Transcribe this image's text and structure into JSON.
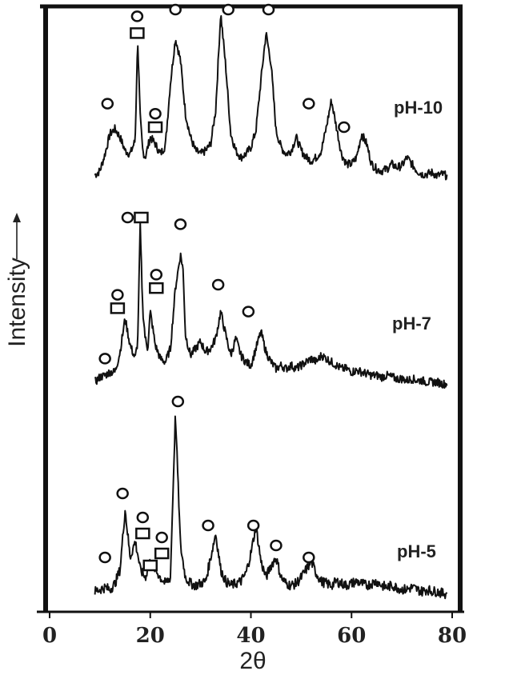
{
  "chart_data": {
    "type": "line",
    "title": "",
    "xlabel": "2θ",
    "ylabel": "Intensity",
    "xlim": [
      0,
      80
    ],
    "x_ticks": [
      "0",
      "20",
      "40",
      "60",
      "80"
    ],
    "legend": "none",
    "grid": false,
    "marker_legend": {
      "circle": "O",
      "square": "□"
    },
    "series": [
      {
        "name": "pH-10",
        "points": [
          [
            9,
            1.5
          ],
          [
            10,
            4
          ],
          [
            11,
            14
          ],
          [
            12,
            26
          ],
          [
            13,
            29
          ],
          [
            14,
            24
          ],
          [
            15,
            16
          ],
          [
            16,
            14
          ],
          [
            17,
            22
          ],
          [
            17.5,
            82
          ],
          [
            18,
            36
          ],
          [
            18.5,
            16
          ],
          [
            19,
            12
          ],
          [
            20,
            24
          ],
          [
            21,
            20
          ],
          [
            22,
            14
          ],
          [
            23,
            19
          ],
          [
            24,
            56
          ],
          [
            25,
            83
          ],
          [
            26,
            70
          ],
          [
            27,
            38
          ],
          [
            28,
            24
          ],
          [
            29,
            16
          ],
          [
            30,
            14
          ],
          [
            31,
            16
          ],
          [
            32,
            20
          ],
          [
            33,
            40
          ],
          [
            34,
            98
          ],
          [
            35,
            66
          ],
          [
            36,
            26
          ],
          [
            37,
            16
          ],
          [
            38,
            12
          ],
          [
            39,
            14
          ],
          [
            40,
            18
          ],
          [
            41,
            28
          ],
          [
            42,
            58
          ],
          [
            43,
            86
          ],
          [
            44,
            68
          ],
          [
            45,
            28
          ],
          [
            46,
            18
          ],
          [
            47,
            14
          ],
          [
            48,
            16
          ],
          [
            49,
            24
          ],
          [
            50,
            16
          ],
          [
            51,
            12
          ],
          [
            52,
            10
          ],
          [
            53,
            12
          ],
          [
            54,
            16
          ],
          [
            55,
            30
          ],
          [
            56,
            46
          ],
          [
            57,
            30
          ],
          [
            58,
            14
          ],
          [
            59,
            8
          ],
          [
            60,
            8
          ],
          [
            61,
            12
          ],
          [
            62,
            26
          ],
          [
            63,
            20
          ],
          [
            64,
            8
          ],
          [
            65,
            5
          ],
          [
            66,
            4
          ],
          [
            67,
            5
          ],
          [
            68,
            8
          ],
          [
            69,
            6
          ],
          [
            70,
            7
          ],
          [
            71,
            12
          ],
          [
            72,
            8
          ],
          [
            73,
            4
          ],
          [
            74,
            2
          ],
          [
            75,
            2
          ],
          [
            76,
            3
          ],
          [
            77,
            1
          ],
          [
            78,
            2
          ],
          [
            79,
            1
          ]
        ]
      },
      {
        "name": "pH-7",
        "points": [
          [
            9,
            2
          ],
          [
            10,
            5
          ],
          [
            11,
            6
          ],
          [
            12,
            8
          ],
          [
            13,
            8
          ],
          [
            14,
            20
          ],
          [
            15,
            40
          ],
          [
            16,
            24
          ],
          [
            17,
            16
          ],
          [
            17.5,
            26
          ],
          [
            18,
            95
          ],
          [
            18.5,
            46
          ],
          [
            19,
            28
          ],
          [
            19.5,
            22
          ],
          [
            20,
            44
          ],
          [
            21,
            24
          ],
          [
            22,
            16
          ],
          [
            23,
            14
          ],
          [
            24,
            22
          ],
          [
            25,
            58
          ],
          [
            26,
            78
          ],
          [
            26.5,
            70
          ],
          [
            27,
            30
          ],
          [
            28,
            18
          ],
          [
            29,
            22
          ],
          [
            30,
            26
          ],
          [
            31,
            20
          ],
          [
            32,
            22
          ],
          [
            33,
            28
          ],
          [
            34,
            44
          ],
          [
            35,
            30
          ],
          [
            36,
            18
          ],
          [
            37,
            28
          ],
          [
            38,
            18
          ],
          [
            39,
            14
          ],
          [
            40,
            12
          ],
          [
            41,
            22
          ],
          [
            42,
            32
          ],
          [
            43,
            20
          ],
          [
            44,
            14
          ],
          [
            45,
            10
          ],
          [
            46,
            12
          ],
          [
            47,
            10
          ],
          [
            48,
            12
          ],
          [
            49,
            10
          ],
          [
            50,
            12
          ],
          [
            51,
            14
          ],
          [
            52,
            16
          ],
          [
            53,
            14
          ],
          [
            54,
            18
          ],
          [
            55,
            16
          ],
          [
            56,
            14
          ],
          [
            57,
            12
          ],
          [
            58,
            10
          ],
          [
            59,
            10
          ],
          [
            60,
            8
          ],
          [
            61,
            9
          ],
          [
            62,
            8
          ],
          [
            63,
            7
          ],
          [
            64,
            6
          ],
          [
            65,
            6
          ],
          [
            66,
            5
          ],
          [
            67,
            6
          ],
          [
            68,
            5
          ],
          [
            69,
            4
          ],
          [
            70,
            4
          ],
          [
            71,
            3
          ],
          [
            72,
            4
          ],
          [
            73,
            3
          ],
          [
            74,
            3
          ],
          [
            75,
            2
          ],
          [
            76,
            2
          ],
          [
            77,
            2
          ],
          [
            78,
            1
          ],
          [
            79,
            1
          ]
        ]
      },
      {
        "name": "pH-5",
        "points": [
          [
            9,
            1
          ],
          [
            10,
            2
          ],
          [
            11,
            3
          ],
          [
            12,
            2
          ],
          [
            13,
            5
          ],
          [
            14,
            12
          ],
          [
            15,
            42
          ],
          [
            16,
            18
          ],
          [
            17,
            26
          ],
          [
            17.5,
            20
          ],
          [
            18,
            12
          ],
          [
            19,
            8
          ],
          [
            20,
            16
          ],
          [
            21,
            12
          ],
          [
            22,
            8
          ],
          [
            23,
            5
          ],
          [
            24,
            8
          ],
          [
            25,
            90
          ],
          [
            26,
            24
          ],
          [
            27,
            8
          ],
          [
            28,
            5
          ],
          [
            29,
            4
          ],
          [
            30,
            5
          ],
          [
            31,
            6
          ],
          [
            32,
            18
          ],
          [
            33,
            30
          ],
          [
            34,
            12
          ],
          [
            35,
            6
          ],
          [
            36,
            4
          ],
          [
            37,
            5
          ],
          [
            38,
            6
          ],
          [
            39,
            10
          ],
          [
            40,
            20
          ],
          [
            41,
            34
          ],
          [
            42,
            16
          ],
          [
            43,
            8
          ],
          [
            44,
            14
          ],
          [
            45,
            18
          ],
          [
            46,
            8
          ],
          [
            47,
            5
          ],
          [
            48,
            4
          ],
          [
            49,
            5
          ],
          [
            50,
            8
          ],
          [
            51,
            12
          ],
          [
            52,
            16
          ],
          [
            53,
            10
          ],
          [
            54,
            6
          ],
          [
            55,
            5
          ],
          [
            56,
            4
          ],
          [
            57,
            6
          ],
          [
            58,
            5
          ],
          [
            59,
            4
          ],
          [
            60,
            5
          ],
          [
            61,
            6
          ],
          [
            62,
            5
          ],
          [
            63,
            4
          ],
          [
            64,
            5
          ],
          [
            65,
            6
          ],
          [
            66,
            4
          ],
          [
            67,
            3
          ],
          [
            68,
            4
          ],
          [
            69,
            3
          ],
          [
            70,
            2
          ],
          [
            71,
            2
          ],
          [
            72,
            3
          ],
          [
            73,
            2
          ],
          [
            74,
            1
          ],
          [
            75,
            2
          ],
          [
            76,
            1
          ],
          [
            77,
            1
          ],
          [
            78,
            0
          ],
          [
            79,
            0
          ]
        ]
      }
    ],
    "annotations": [
      {
        "series": "pH-10",
        "marker": "circle",
        "x": 11.5,
        "y": 44
      },
      {
        "series": "pH-10",
        "marker": "circle",
        "x": 17.4,
        "y": 96
      },
      {
        "series": "pH-10",
        "marker": "square",
        "x": 17.4,
        "y": 86
      },
      {
        "series": "pH-10",
        "marker": "circle",
        "x": 21,
        "y": 38
      },
      {
        "series": "pH-10",
        "marker": "square",
        "x": 21,
        "y": 30
      },
      {
        "series": "pH-10",
        "marker": "circle",
        "x": 25,
        "y": 100
      },
      {
        "series": "pH-10",
        "marker": "circle",
        "x": 35.5,
        "y": 100
      },
      {
        "series": "pH-10",
        "marker": "circle",
        "x": 43.5,
        "y": 100
      },
      {
        "series": "pH-10",
        "marker": "circle",
        "x": 51.5,
        "y": 44
      },
      {
        "series": "pH-10",
        "marker": "circle",
        "x": 58.5,
        "y": 30
      },
      {
        "series": "pH-7",
        "marker": "circle",
        "x": 11,
        "y": 16
      },
      {
        "series": "pH-7",
        "marker": "circle",
        "x": 13.5,
        "y": 54
      },
      {
        "series": "pH-7",
        "marker": "square",
        "x": 13.5,
        "y": 46
      },
      {
        "series": "pH-7",
        "marker": "circle",
        "x": 15.5,
        "y": 100
      },
      {
        "series": "pH-7",
        "marker": "square",
        "x": 18.2,
        "y": 100
      },
      {
        "series": "pH-7",
        "marker": "circle",
        "x": 21.2,
        "y": 66
      },
      {
        "series": "pH-7",
        "marker": "square",
        "x": 21.2,
        "y": 58
      },
      {
        "series": "pH-7",
        "marker": "circle",
        "x": 26,
        "y": 96
      },
      {
        "series": "pH-7",
        "marker": "circle",
        "x": 33.5,
        "y": 60
      },
      {
        "series": "pH-7",
        "marker": "circle",
        "x": 39.5,
        "y": 44
      },
      {
        "series": "pH-5",
        "marker": "circle",
        "x": 11,
        "y": 18
      },
      {
        "series": "pH-5",
        "marker": "circle",
        "x": 14.5,
        "y": 50
      },
      {
        "series": "pH-5",
        "marker": "circle",
        "x": 18.5,
        "y": 38
      },
      {
        "series": "pH-5",
        "marker": "square",
        "x": 18.5,
        "y": 30
      },
      {
        "series": "pH-5",
        "marker": "square",
        "x": 20,
        "y": 14
      },
      {
        "series": "pH-5",
        "marker": "circle",
        "x": 22.3,
        "y": 28
      },
      {
        "series": "pH-5",
        "marker": "square",
        "x": 22.3,
        "y": 20
      },
      {
        "series": "pH-5",
        "marker": "circle",
        "x": 25.5,
        "y": 96
      },
      {
        "series": "pH-5",
        "marker": "circle",
        "x": 31.5,
        "y": 34
      },
      {
        "series": "pH-5",
        "marker": "circle",
        "x": 40.5,
        "y": 34
      },
      {
        "series": "pH-5",
        "marker": "circle",
        "x": 45,
        "y": 24
      },
      {
        "series": "pH-5",
        "marker": "circle",
        "x": 51.5,
        "y": 18
      }
    ]
  }
}
